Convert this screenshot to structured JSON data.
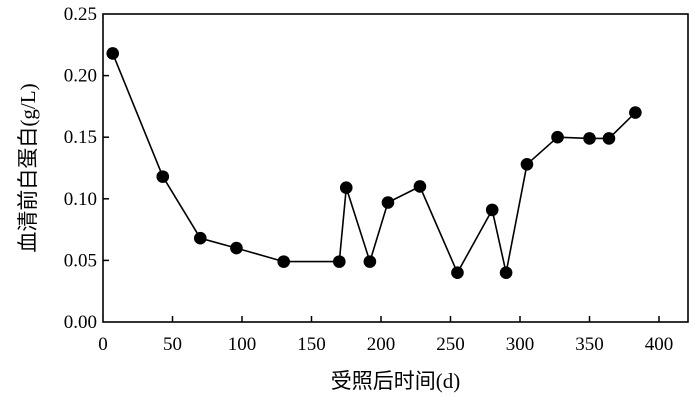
{
  "chart_data": {
    "type": "line",
    "title": "",
    "xlabel": "受照后时间(d)",
    "ylabel": "血清前白蛋白(g/L)",
    "xlim": [
      0,
      400
    ],
    "ylim": [
      0,
      0.25
    ],
    "xticks": [
      "0",
      "50",
      "100",
      "150",
      "200",
      "250",
      "300",
      "350",
      "400"
    ],
    "yticks": [
      "0.00",
      "0.05",
      "0.10",
      "0.15",
      "0.20",
      "0.25"
    ],
    "grid": false,
    "legend": "none",
    "series": [
      {
        "marker": "filled-circle",
        "color": "#000000",
        "points": [
          {
            "x": 7,
            "y": 0.218
          },
          {
            "x": 43,
            "y": 0.118
          },
          {
            "x": 70,
            "y": 0.068
          },
          {
            "x": 96,
            "y": 0.06
          },
          {
            "x": 130,
            "y": 0.049
          },
          {
            "x": 170,
            "y": 0.049
          },
          {
            "x": 175,
            "y": 0.109
          },
          {
            "x": 192,
            "y": 0.049
          },
          {
            "x": 205,
            "y": 0.097
          },
          {
            "x": 228,
            "y": 0.11
          },
          {
            "x": 255,
            "y": 0.04
          },
          {
            "x": 280,
            "y": 0.091
          },
          {
            "x": 290,
            "y": 0.04
          },
          {
            "x": 305,
            "y": 0.128
          },
          {
            "x": 327,
            "y": 0.15
          },
          {
            "x": 350,
            "y": 0.149
          },
          {
            "x": 364,
            "y": 0.149
          },
          {
            "x": 383,
            "y": 0.17
          }
        ]
      }
    ]
  }
}
